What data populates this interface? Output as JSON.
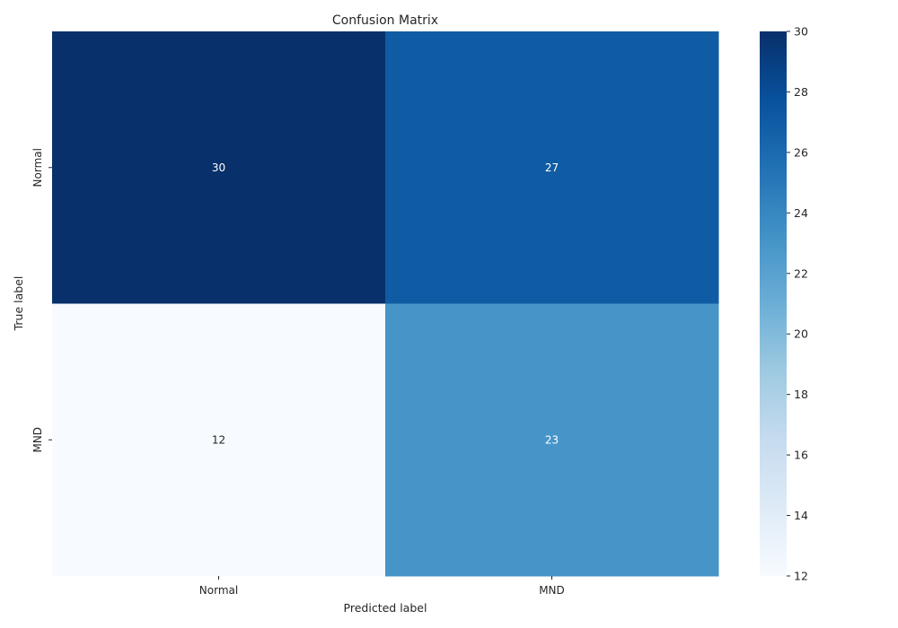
{
  "chart_data": {
    "type": "heatmap",
    "title": "Confusion Matrix",
    "xlabel": "Predicted label",
    "ylabel": "True label",
    "x_categories": [
      "Normal",
      "MND"
    ],
    "y_categories": [
      "Normal",
      "MND"
    ],
    "values": [
      [
        30,
        27
      ],
      [
        12,
        23
      ]
    ],
    "colormap": "Blues",
    "colorbar": {
      "min": 12,
      "max": 30,
      "ticks": [
        12,
        14,
        16,
        18,
        20,
        22,
        24,
        26,
        28,
        30
      ]
    }
  },
  "colors": {
    "annotation_light": "#ffffff",
    "annotation_dark": "#262626"
  }
}
